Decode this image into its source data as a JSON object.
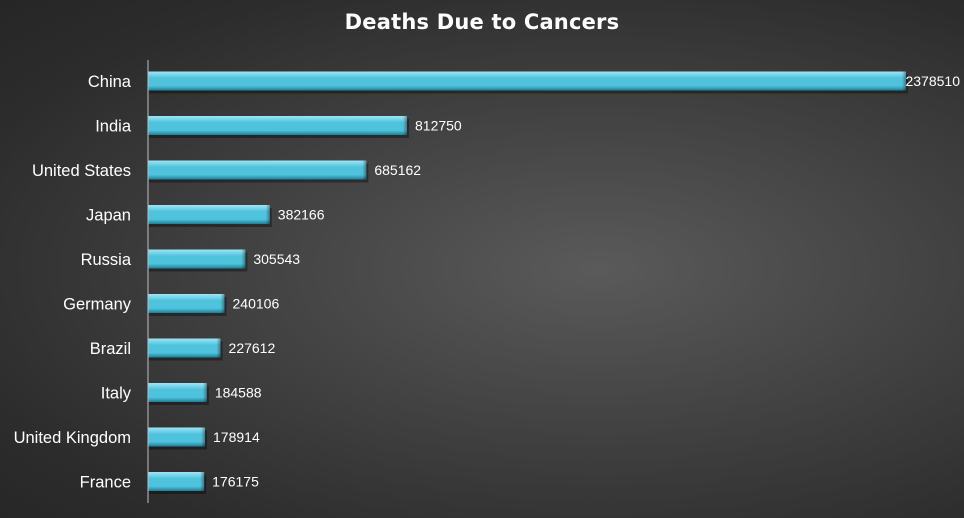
{
  "chart_data": {
    "type": "bar",
    "orientation": "horizontal",
    "title": "Deaths Due to Cancers",
    "xlabel": "",
    "ylabel": "",
    "categories": [
      "China",
      "India",
      "United States",
      "Japan",
      "Russia",
      "Germany",
      "Brazil",
      "Italy",
      "United Kingdom",
      "France"
    ],
    "values": [
      2378510,
      812750,
      685162,
      382166,
      305543,
      240106,
      227612,
      184588,
      178914,
      176175
    ],
    "value_labels": [
      "2378510",
      "812750",
      "685162",
      "382166",
      "305543",
      "240106",
      "227612",
      "184588",
      "178914",
      "176175"
    ],
    "xlim": [
      0,
      2378510
    ],
    "grid": false,
    "legend": "none",
    "colors": {
      "bar": "#4fc3dc",
      "bar_light": "#9ee6f5",
      "bar_dark": "#1e7f98",
      "text": "#ffffff",
      "axis": "#bfbfbf"
    }
  }
}
